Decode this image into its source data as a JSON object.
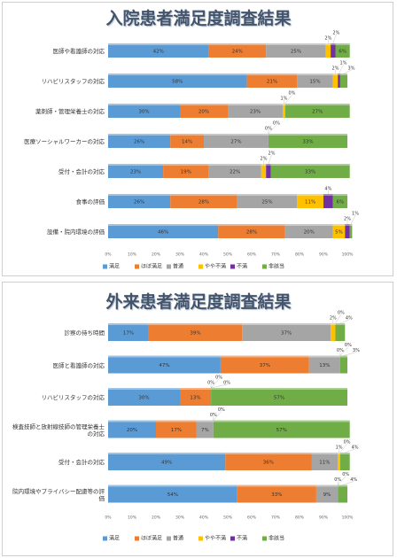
{
  "chart_data": [
    {
      "type": "bar",
      "orientation": "horizontal",
      "stacked": true,
      "title": "入院患者満足度調査結果",
      "categories": [
        "医師や看護師の対応",
        "リハビリスタッフの対応",
        "薬剤師・管理栄養士の対応",
        "医療ソーシャルワーカーの対応",
        "受付・会計の対応",
        "食事の評価",
        "設備・院内環境の評価"
      ],
      "series": [
        {
          "name": "満足",
          "color": "#5b9bd5",
          "values": [
            42,
            58,
            30,
            26,
            23,
            26,
            46
          ],
          "value_labels": [
            "42%",
            "58%",
            "30%",
            "26%",
            "23%",
            "26%",
            "46%"
          ]
        },
        {
          "name": "ほぼ満足",
          "color": "#ed7d31",
          "values": [
            24,
            21,
            20,
            14,
            19,
            28,
            28
          ],
          "value_labels": [
            "24%",
            "21%",
            "20%",
            "14%",
            "19%",
            "28%",
            "28%"
          ]
        },
        {
          "name": "普通",
          "color": "#a5a5a5",
          "values": [
            25,
            15,
            23,
            27,
            22,
            25,
            20
          ],
          "value_labels": [
            "25%",
            "15%",
            "23%",
            "27%",
            "22%",
            "25%",
            "20%"
          ]
        },
        {
          "name": "やや不満",
          "color": "#ffc000",
          "values": [
            2,
            2,
            1,
            0,
            2,
            11,
            5
          ],
          "value_labels": [
            "2%",
            "2%",
            "1%",
            "0%",
            "2%",
            "11%",
            "5%"
          ]
        },
        {
          "name": "不満",
          "color": "#7030a0",
          "values": [
            2,
            1,
            0,
            0,
            2,
            4,
            2
          ],
          "value_labels": [
            "2%",
            "1%",
            "0%",
            "0%",
            "2%",
            "4%",
            "2%"
          ]
        },
        {
          "name": "非該当",
          "color": "#70ad47",
          "values": [
            6,
            3,
            27,
            33,
            33,
            6,
            1
          ],
          "value_labels": [
            "6%",
            "3%",
            "27%",
            "33%",
            "33%",
            "6%",
            "1%"
          ]
        }
      ],
      "xlim": [
        0,
        100
      ],
      "xticks": [
        {
          "value": 0,
          "label": "0%"
        },
        {
          "value": 10,
          "label": "10%"
        },
        {
          "value": 20,
          "label": "20%"
        },
        {
          "value": 30,
          "label": "30%"
        },
        {
          "value": 40,
          "label": "40%"
        },
        {
          "value": 50,
          "label": "50%"
        },
        {
          "value": 60,
          "label": "60%"
        },
        {
          "value": 70,
          "label": "70%"
        },
        {
          "value": 80,
          "label": "80%"
        },
        {
          "value": 90,
          "label": "90%"
        },
        {
          "value": 100,
          "label": "100%"
        }
      ],
      "legend": "bottom"
    },
    {
      "type": "bar",
      "orientation": "horizontal",
      "stacked": true,
      "title": "外来患者満足度調査結果",
      "categories": [
        "診察の待ち時間",
        "医師と看護師の対応",
        "リハビリスタッフの対応",
        "検査技師と放射線技師の管理栄養士の対応",
        "受付・会計の対応",
        "院内環境やプライバシー配慮等の評価"
      ],
      "series": [
        {
          "name": "満足",
          "color": "#5b9bd5",
          "values": [
            17,
            47,
            30,
            20,
            49,
            54
          ],
          "value_labels": [
            "17%",
            "47%",
            "30%",
            "20%",
            "49%",
            "54%"
          ]
        },
        {
          "name": "ほぼ満足",
          "color": "#ed7d31",
          "values": [
            39,
            37,
            13,
            17,
            36,
            33
          ],
          "value_labels": [
            "39%",
            "37%",
            "13%",
            "17%",
            "36%",
            "33%"
          ]
        },
        {
          "name": "普通",
          "color": "#a5a5a5",
          "values": [
            37,
            13,
            0,
            7,
            11,
            9
          ],
          "value_labels": [
            "37%",
            "13%",
            "0%",
            "7%",
            "11%",
            "9%"
          ]
        },
        {
          "name": "やや不満",
          "color": "#ffc000",
          "values": [
            2,
            0,
            0,
            0,
            1,
            0
          ],
          "value_labels": [
            "2%",
            "0%",
            "0%",
            "0%",
            "1%",
            "0%"
          ]
        },
        {
          "name": "不満",
          "color": "#7030a0",
          "values": [
            0,
            0,
            0,
            0,
            0,
            0
          ],
          "value_labels": [
            "0%",
            "0%",
            "0%",
            "0%",
            "0%",
            "0%"
          ]
        },
        {
          "name": "非該当",
          "color": "#70ad47",
          "values": [
            4,
            3,
            57,
            57,
            4,
            4
          ],
          "value_labels": [
            "4%",
            "3%",
            "57%",
            "57%",
            "4%",
            "4%"
          ]
        }
      ],
      "xlim": [
        0,
        100
      ],
      "xticks": [
        {
          "value": 0,
          "label": "0%"
        },
        {
          "value": 10,
          "label": "10%"
        },
        {
          "value": 20,
          "label": "20%"
        },
        {
          "value": 30,
          "label": "30%"
        },
        {
          "value": 40,
          "label": "40%"
        },
        {
          "value": 50,
          "label": "50%"
        },
        {
          "value": 60,
          "label": "60%"
        },
        {
          "value": 70,
          "label": "70%"
        },
        {
          "value": 80,
          "label": "80%"
        },
        {
          "value": 90,
          "label": "90%"
        },
        {
          "value": 100,
          "label": "100%"
        }
      ],
      "legend": "bottom"
    }
  ]
}
